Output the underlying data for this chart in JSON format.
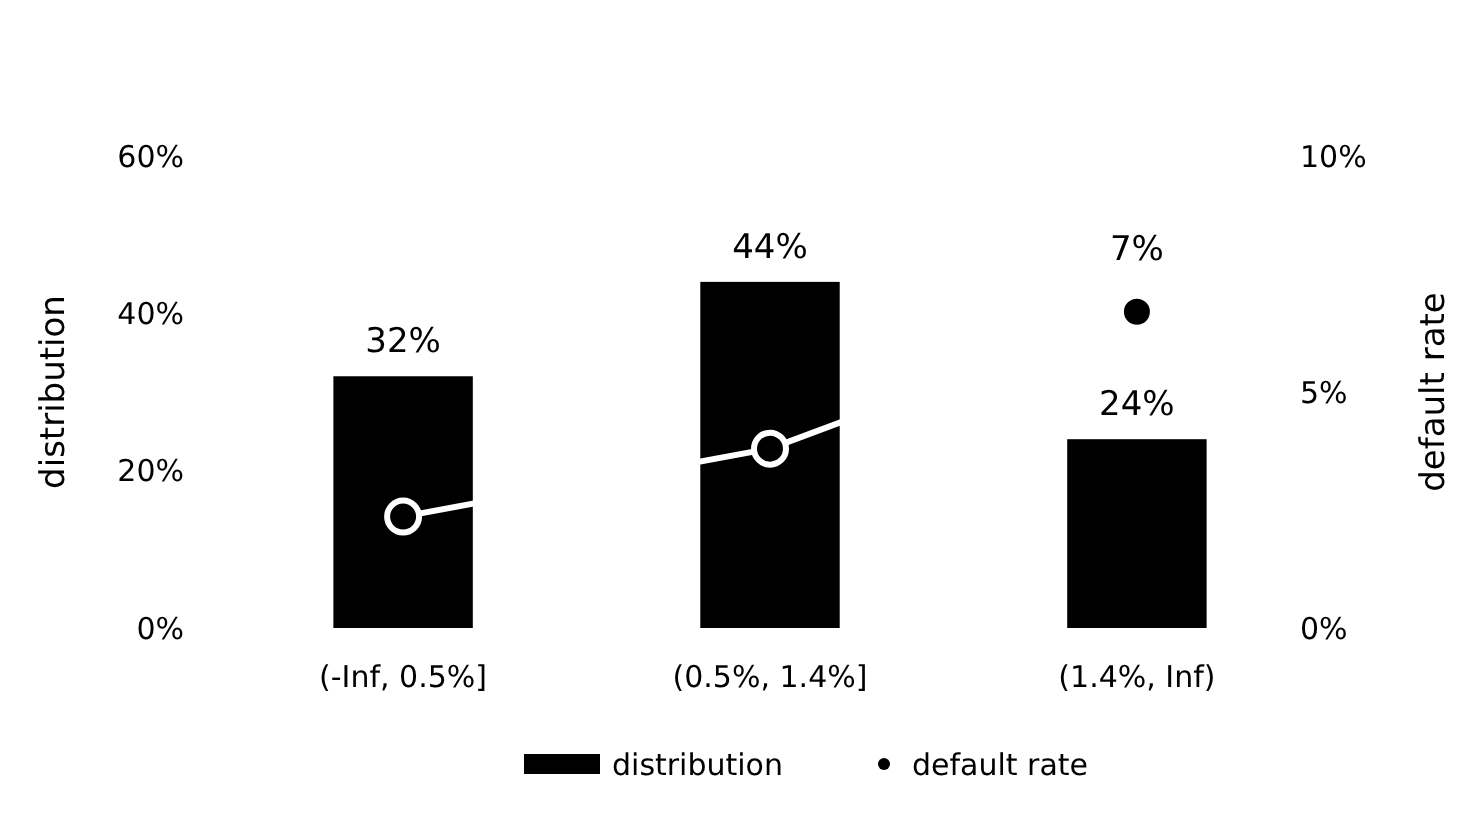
{
  "chart_data": {
    "type": "bar",
    "categories": [
      "(-Inf, 0.5%]",
      "(0.5%, 1.4%]",
      "(1.4%, Inf)"
    ],
    "ylabel": "distribution",
    "y2label": "default rate",
    "ylim": [
      0,
      60
    ],
    "yticks": [
      {
        "value": 0,
        "label": "0%"
      },
      {
        "value": 20,
        "label": "20%"
      },
      {
        "value": 40,
        "label": "40%"
      },
      {
        "value": 60,
        "label": "60%"
      }
    ],
    "y2lim": [
      0,
      10
    ],
    "y2ticks": [
      {
        "value": 0,
        "label": "0%"
      },
      {
        "value": 5,
        "label": "5%"
      },
      {
        "value": 10,
        "label": "10%"
      }
    ],
    "legend": "bottom",
    "grid": false,
    "series": [
      {
        "name": "distribution",
        "color": "#000000",
        "values": [
          32,
          44,
          24
        ],
        "value_labels": [
          "32%",
          "44%",
          "24%"
        ]
      },
      {
        "name": "default rate",
        "type": "line",
        "axis": "y2",
        "color": "#ffffff",
        "marker": "circle",
        "values": [
          2.36,
          3.8,
          6.7
        ],
        "value_labels": [
          null,
          null,
          "7%"
        ]
      }
    ]
  }
}
